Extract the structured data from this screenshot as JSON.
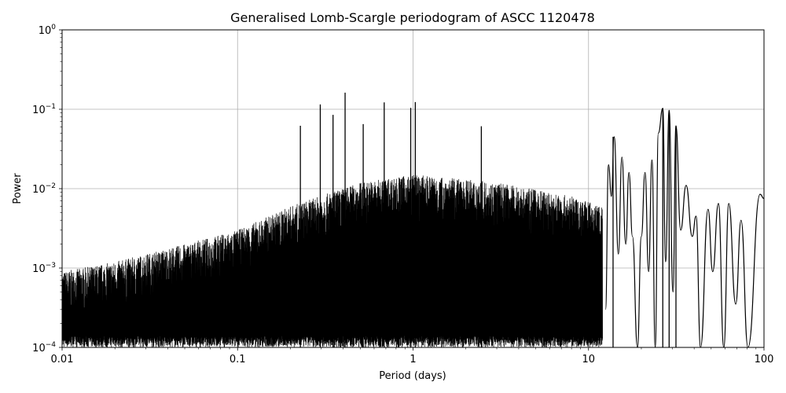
{
  "chart_data": {
    "type": "line",
    "title": "Generalised Lomb-Scargle periodogram of ASCC 1120478",
    "xlabel": "Period (days)",
    "ylabel": "Power",
    "xscale": "log",
    "yscale": "log",
    "xlim": [
      0.01,
      100
    ],
    "ylim": [
      0.0001,
      1
    ],
    "grid": true,
    "x_ticks": [
      {
        "value": 0.01,
        "label": "0.01"
      },
      {
        "value": 0.1,
        "label": "0.1"
      },
      {
        "value": 1,
        "label": "1"
      },
      {
        "value": 10,
        "label": "10"
      },
      {
        "value": 100,
        "label": "100"
      }
    ],
    "y_ticks": [
      {
        "value": 0.0001,
        "base": "10",
        "exp": "−4"
      },
      {
        "value": 0.001,
        "base": "10",
        "exp": "−3"
      },
      {
        "value": 0.01,
        "base": "10",
        "exp": "−2"
      },
      {
        "value": 0.1,
        "base": "10",
        "exp": "−1"
      },
      {
        "value": 1,
        "base": "10",
        "exp": "0"
      }
    ],
    "series": [
      {
        "line_color": "#000000",
        "peaks": [
          {
            "period": 0.228,
            "power": 0.062
          },
          {
            "period": 0.296,
            "power": 0.115
          },
          {
            "period": 0.35,
            "power": 0.085
          },
          {
            "period": 0.41,
            "power": 0.162
          },
          {
            "period": 0.52,
            "power": 0.065
          },
          {
            "period": 0.685,
            "power": 0.122
          },
          {
            "period": 0.97,
            "power": 0.104
          },
          {
            "period": 1.03,
            "power": 0.123
          },
          {
            "period": 2.45,
            "power": 0.061
          },
          {
            "period": 13.8,
            "power": 0.045
          },
          {
            "period": 26.5,
            "power": 0.103
          },
          {
            "period": 28.8,
            "power": 0.097
          },
          {
            "period": 31.5,
            "power": 0.062
          }
        ],
        "envelope": [
          {
            "period": 0.01,
            "power": 0.0009
          },
          {
            "period": 0.02,
            "power": 0.0012
          },
          {
            "period": 0.05,
            "power": 0.002
          },
          {
            "period": 0.1,
            "power": 0.003
          },
          {
            "period": 0.2,
            "power": 0.006
          },
          {
            "period": 0.5,
            "power": 0.012
          },
          {
            "period": 1,
            "power": 0.015
          },
          {
            "period": 3,
            "power": 0.012
          },
          {
            "period": 8,
            "power": 0.008
          },
          {
            "period": 12,
            "power": 0.006
          }
        ],
        "long_period_curve": [
          {
            "period": 12.5,
            "power": 0.0003
          },
          {
            "period": 13,
            "power": 0.02
          },
          {
            "period": 13.5,
            "power": 0.008
          },
          {
            "period": 14,
            "power": 0.045
          },
          {
            "period": 14.8,
            "power": 0.0015
          },
          {
            "period": 15.5,
            "power": 0.025
          },
          {
            "period": 16.3,
            "power": 0.002
          },
          {
            "period": 17,
            "power": 0.016
          },
          {
            "period": 17.8,
            "power": 0.0025
          },
          {
            "period": 19,
            "power": 0.0001
          },
          {
            "period": 20,
            "power": 0.0025
          },
          {
            "period": 21,
            "power": 0.016
          },
          {
            "period": 22,
            "power": 0.0009
          },
          {
            "period": 23,
            "power": 0.023
          },
          {
            "period": 24,
            "power": 0.0001
          },
          {
            "period": 25,
            "power": 0.05
          },
          {
            "period": 26.5,
            "power": 0.103
          },
          {
            "period": 27.5,
            "power": 0.0012
          },
          {
            "period": 28.8,
            "power": 0.097
          },
          {
            "period": 30.3,
            "power": 0.0005
          },
          {
            "period": 31.5,
            "power": 0.062
          },
          {
            "period": 33.5,
            "power": 0.003
          },
          {
            "period": 36,
            "power": 0.011
          },
          {
            "period": 39,
            "power": 0.0025
          },
          {
            "period": 41,
            "power": 0.0045
          },
          {
            "period": 43.5,
            "power": 0.0001
          },
          {
            "period": 48,
            "power": 0.0055
          },
          {
            "period": 51,
            "power": 0.0009
          },
          {
            "period": 55,
            "power": 0.0065
          },
          {
            "period": 59,
            "power": 0.0001
          },
          {
            "period": 63,
            "power": 0.0065
          },
          {
            "period": 69,
            "power": 0.00035
          },
          {
            "period": 74,
            "power": 0.004
          },
          {
            "period": 81,
            "power": 0.0001
          },
          {
            "period": 95,
            "power": 0.0085
          },
          {
            "period": 100,
            "power": 0.0075
          }
        ]
      }
    ]
  }
}
